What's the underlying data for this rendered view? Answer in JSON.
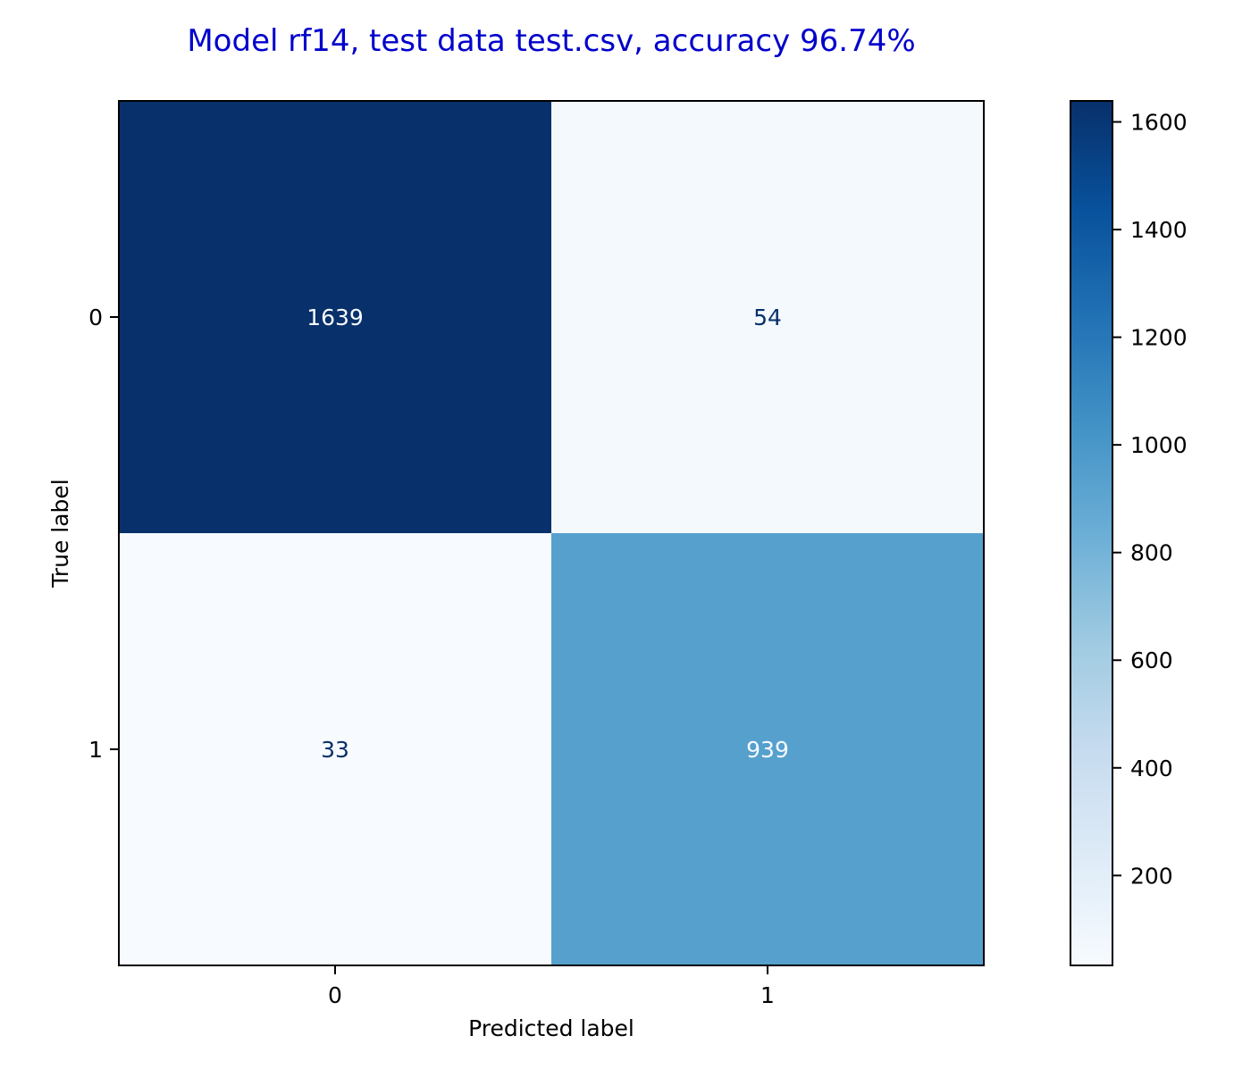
{
  "chart_data": {
    "type": "heatmap",
    "title": "Model rf14, test data test.csv, accuracy 96.74%",
    "title_color": "#0000cc",
    "xlabel": "Predicted label",
    "ylabel": "True label",
    "x_categories": [
      "0",
      "1"
    ],
    "y_categories": [
      "0",
      "1"
    ],
    "values": [
      [
        1639,
        54
      ],
      [
        33,
        939
      ]
    ],
    "colormap": "Blues",
    "colorbar": {
      "range": [
        33,
        1639
      ],
      "ticks": [
        200,
        400,
        600,
        800,
        1000,
        1200,
        1400,
        1600
      ],
      "tick_labels": [
        "200",
        "400",
        "600",
        "800",
        "1000",
        "1200",
        "1400",
        "1600"
      ]
    },
    "grid": false
  }
}
